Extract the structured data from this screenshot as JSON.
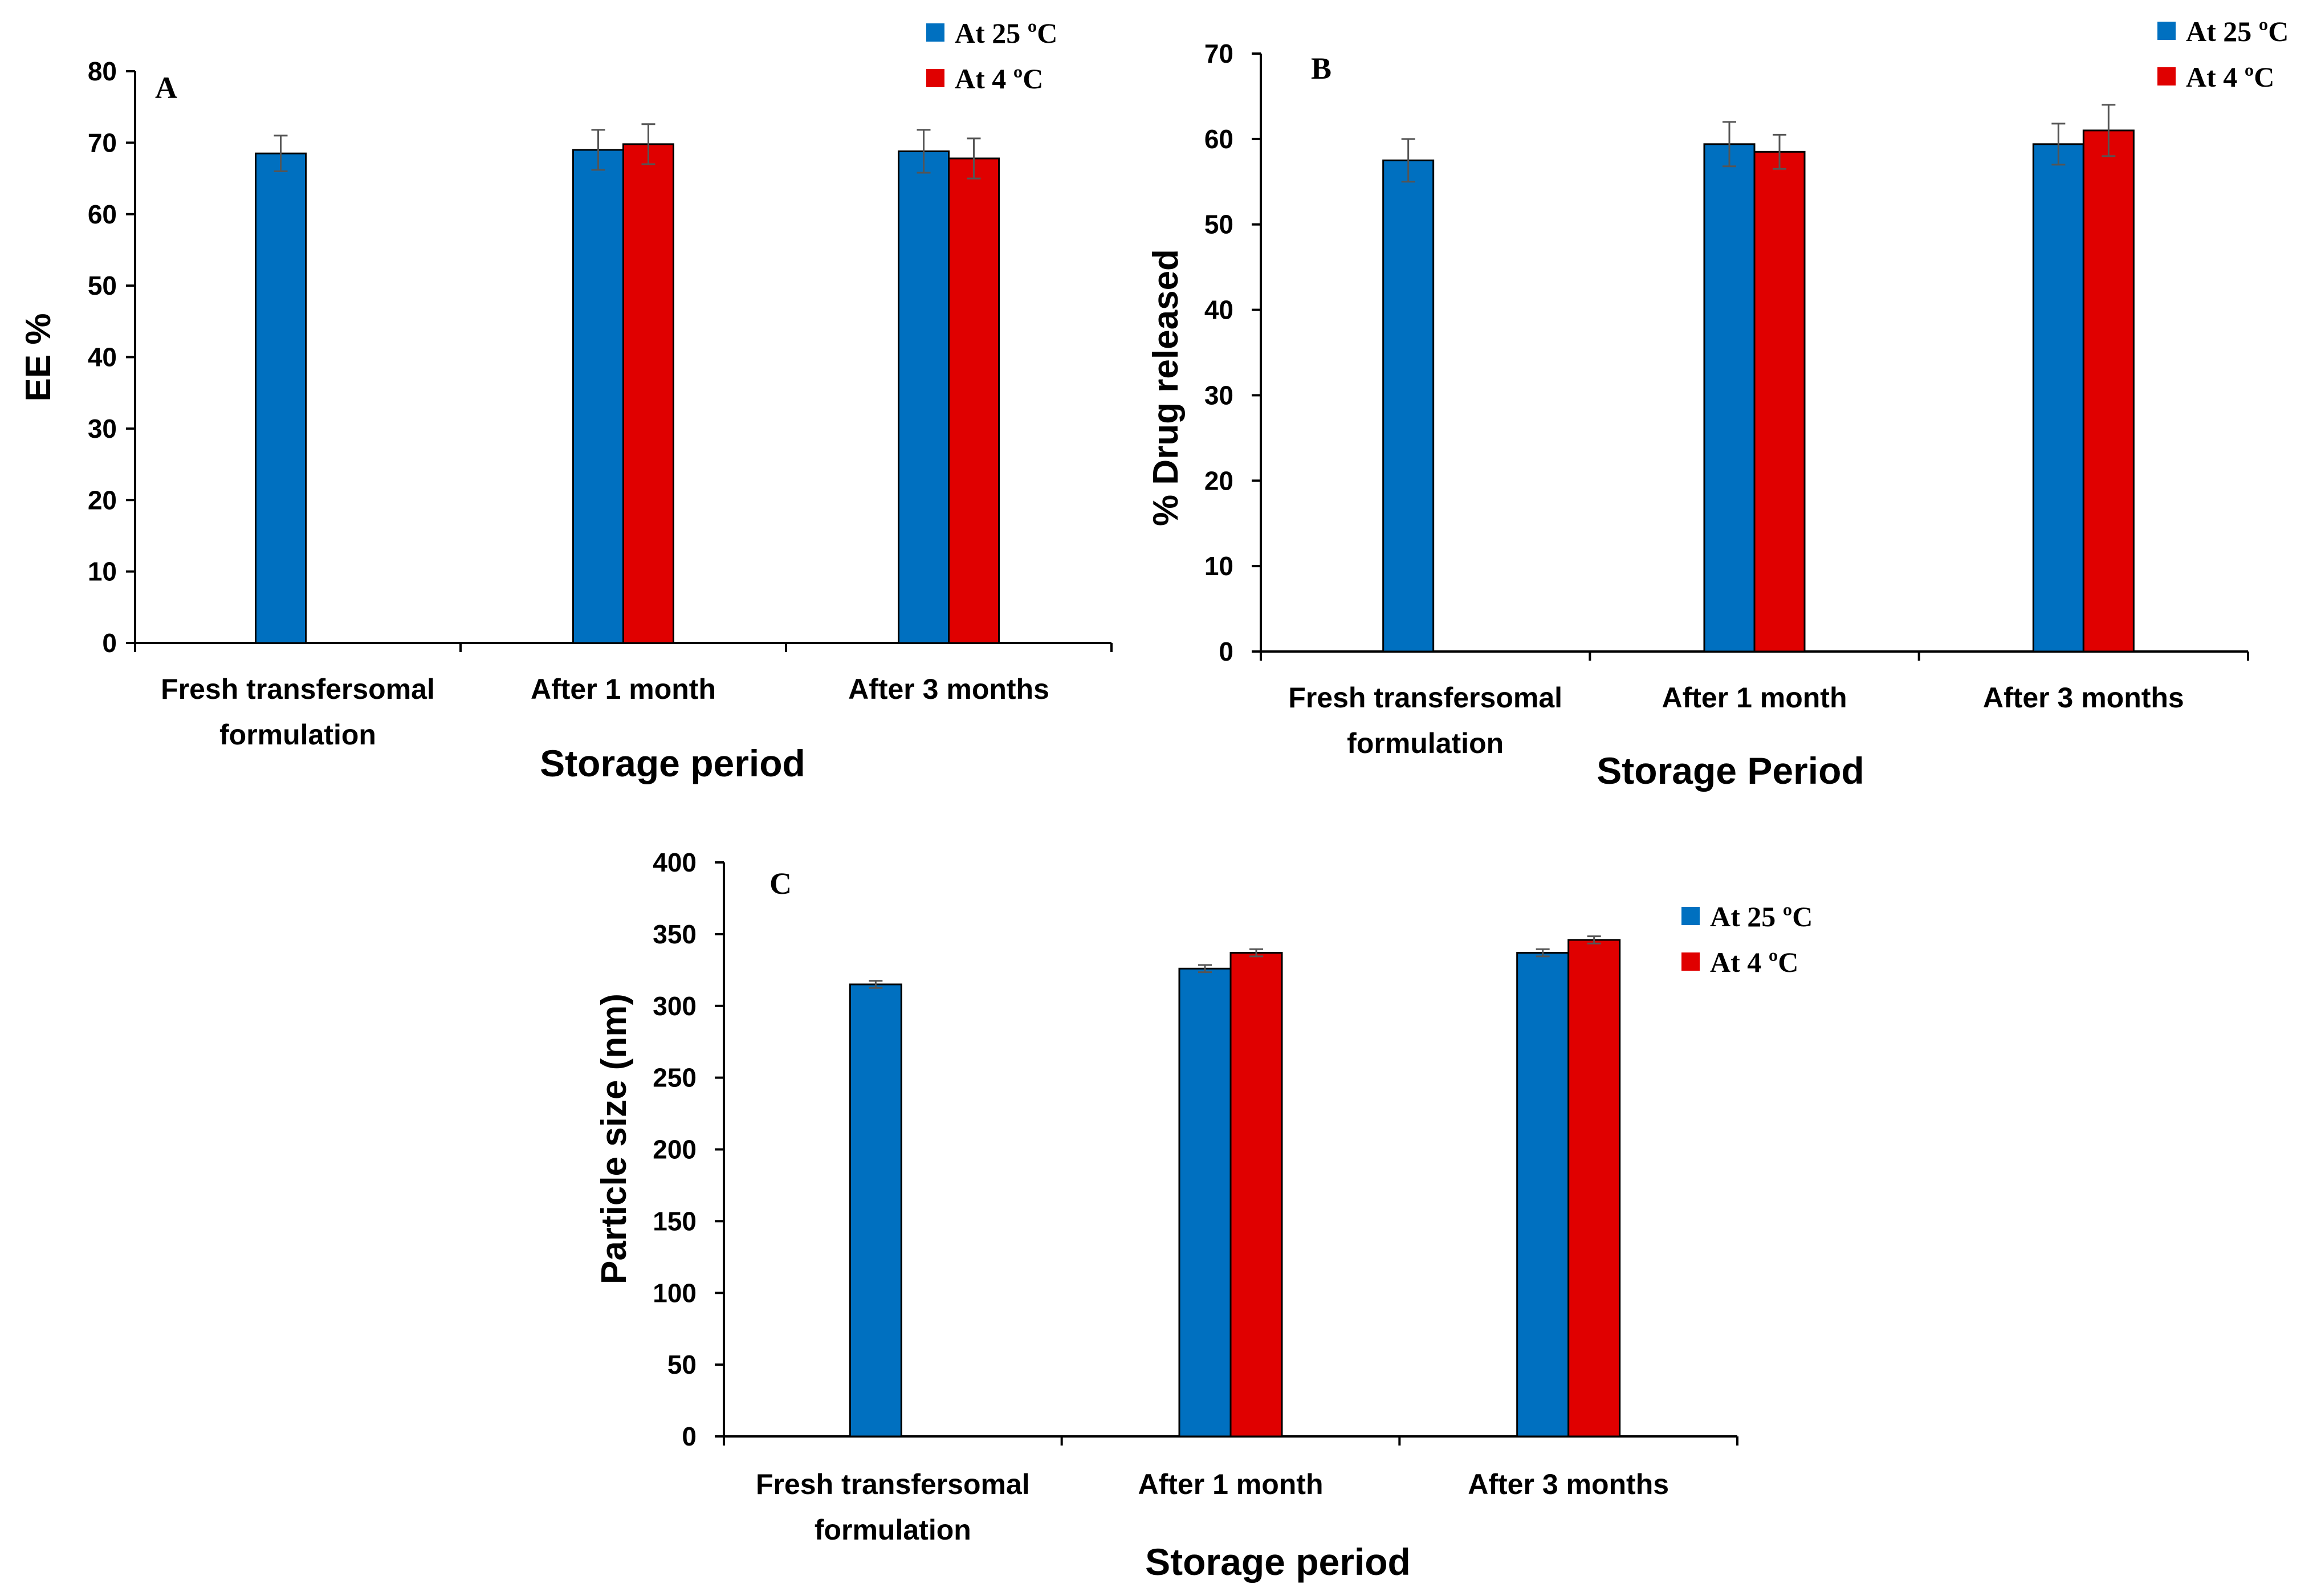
{
  "chart_data": [
    {
      "type": "bar",
      "panel_label": "A",
      "categories": [
        [
          "Fresh transfersomal",
          "formulation"
        ],
        [
          "After 1 month"
        ],
        [
          "After 3 months"
        ]
      ],
      "series": [
        {
          "name": "At 25 ºC",
          "color": "#0070C0",
          "values": [
            68.5,
            69.0,
            68.8
          ],
          "errors": [
            2.5,
            2.8,
            3.0
          ]
        },
        {
          "name": "At 4 ºC",
          "color": "#E00000",
          "values": [
            null,
            69.8,
            67.8
          ],
          "errors": [
            null,
            2.8,
            2.8
          ]
        }
      ],
      "xlabel": "Storage period",
      "ylabel": "EE %",
      "ylim": [
        0,
        80
      ],
      "yticks": [
        "0",
        "10",
        "20",
        "30",
        "40",
        "50",
        "60",
        "70",
        "80"
      ],
      "legend": "top-right"
    },
    {
      "type": "bar",
      "panel_label": "B",
      "categories": [
        [
          "Fresh transfersomal",
          "formulation"
        ],
        [
          "After 1 month"
        ],
        [
          "After 3 months"
        ]
      ],
      "series": [
        {
          "name": "At 25 ºC",
          "color": "#0070C0",
          "values": [
            57.5,
            59.4,
            59.4
          ],
          "errors": [
            2.5,
            2.6,
            2.4
          ]
        },
        {
          "name": "At 4 ºC",
          "color": "#E00000",
          "values": [
            null,
            58.5,
            61.0
          ],
          "errors": [
            null,
            2.0,
            3.0
          ]
        }
      ],
      "xlabel": "Storage Period",
      "ylabel": "% Drug released",
      "ylim": [
        0,
        70
      ],
      "yticks": [
        "0",
        "10",
        "20",
        "30",
        "40",
        "50",
        "60",
        "70"
      ],
      "legend": "top-right"
    },
    {
      "type": "bar",
      "panel_label": "C",
      "categories": [
        [
          "Fresh transfersomal",
          "formulation"
        ],
        [
          "After 1 month"
        ],
        [
          "After 3 months"
        ]
      ],
      "series": [
        {
          "name": "At 25 ºC",
          "color": "#0070C0",
          "values": [
            315,
            326,
            337
          ],
          "errors": [
            2.5,
            2.5,
            2.5
          ]
        },
        {
          "name": "At 4 ºC",
          "color": "#E00000",
          "values": [
            null,
            337,
            346
          ],
          "errors": [
            null,
            2.5,
            2.5
          ]
        }
      ],
      "xlabel": "Storage period",
      "ylabel": "Particle size (nm)",
      "ylim": [
        0,
        400
      ],
      "yticks": [
        "0",
        "50",
        "100",
        "150",
        "200",
        "250",
        "300",
        "350",
        "400"
      ],
      "legend": "top-right"
    }
  ]
}
